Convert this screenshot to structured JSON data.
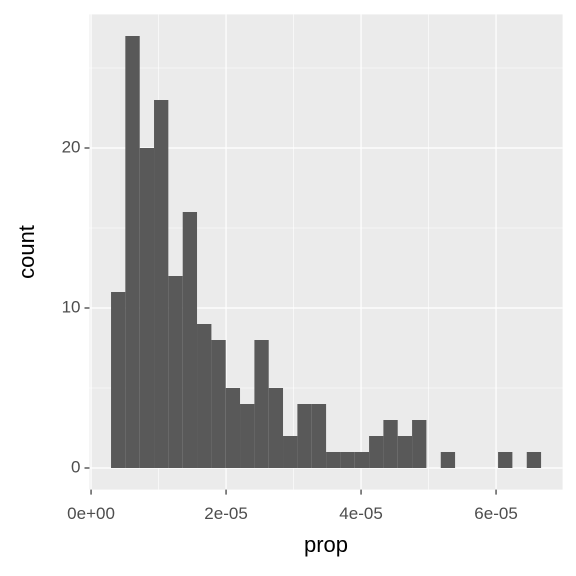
{
  "chart_data": {
    "type": "histogram",
    "x_label": "prop",
    "y_label": "count",
    "bins": [
      2.96e-06,
      5.08e-06,
      7.21e-06,
      9.33e-06,
      1.145e-05,
      1.358e-05,
      1.57e-05,
      1.783e-05,
      1.995e-05,
      2.207e-05,
      2.42e-05,
      2.632e-05,
      2.844e-05,
      3.057e-05,
      3.269e-05,
      3.482e-05,
      3.694e-05,
      3.906e-05,
      4.119e-05,
      4.331e-05,
      4.543e-05,
      4.756e-05,
      4.968e-05,
      5.181e-05,
      5.393e-05,
      5.605e-05,
      5.818e-05,
      6.03e-05,
      6.242e-05,
      6.455e-05,
      6.667e-05
    ],
    "values": [
      11,
      27,
      20,
      23,
      12,
      16,
      9,
      8,
      5,
      4,
      8,
      5,
      2,
      4,
      4,
      1,
      1,
      1,
      2,
      3,
      2,
      3,
      0,
      1,
      0,
      0,
      0,
      1,
      0,
      1
    ],
    "color": "#595959",
    "xlim": [
      -2.3e-07,
      6.986e-05
    ],
    "ylim": [
      -1.35,
      28.35
    ],
    "xticks": [
      {
        "value": 0,
        "label": "0e+00"
      },
      {
        "value": 2e-05,
        "label": "2e-05"
      },
      {
        "value": 4e-05,
        "label": "4e-05"
      },
      {
        "value": 6e-05,
        "label": "6e-05"
      }
    ],
    "yticks": [
      0,
      10,
      20
    ],
    "x_minor_ticks": [
      1e-05,
      3e-05,
      5e-05
    ],
    "y_minor_ticks": [
      5,
      15,
      25
    ],
    "grid": true
  }
}
